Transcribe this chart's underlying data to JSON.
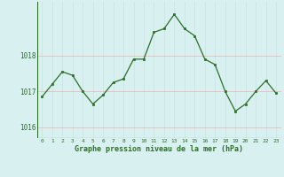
{
  "x": [
    0,
    1,
    2,
    3,
    4,
    5,
    6,
    7,
    8,
    9,
    10,
    11,
    12,
    13,
    14,
    15,
    16,
    17,
    18,
    19,
    20,
    21,
    22,
    23
  ],
  "y": [
    1016.85,
    1017.2,
    1017.55,
    1017.45,
    1017.0,
    1016.65,
    1016.9,
    1017.25,
    1017.35,
    1017.9,
    1017.9,
    1018.65,
    1018.75,
    1019.15,
    1018.75,
    1018.55,
    1017.9,
    1017.75,
    1017.0,
    1016.45,
    1016.65,
    1017.0,
    1017.3,
    1016.95
  ],
  "line_color": "#2d6e28",
  "marker_color": "#2d6e28",
  "bg_color": "#d8f0f0",
  "grid_color_v": "#c8e4e4",
  "grid_color_h": "#f0b0b0",
  "xlabel": "Graphe pression niveau de la mer (hPa)",
  "xlabel_color": "#2d6e28",
  "tick_color": "#2d6e28",
  "ylim": [
    1015.7,
    1019.5
  ],
  "yticks": [
    1016,
    1017,
    1018
  ],
  "xticks": [
    0,
    1,
    2,
    3,
    4,
    5,
    6,
    7,
    8,
    9,
    10,
    11,
    12,
    13,
    14,
    15,
    16,
    17,
    18,
    19,
    20,
    21,
    22,
    23
  ],
  "figsize": [
    3.2,
    2.0
  ],
  "dpi": 100
}
